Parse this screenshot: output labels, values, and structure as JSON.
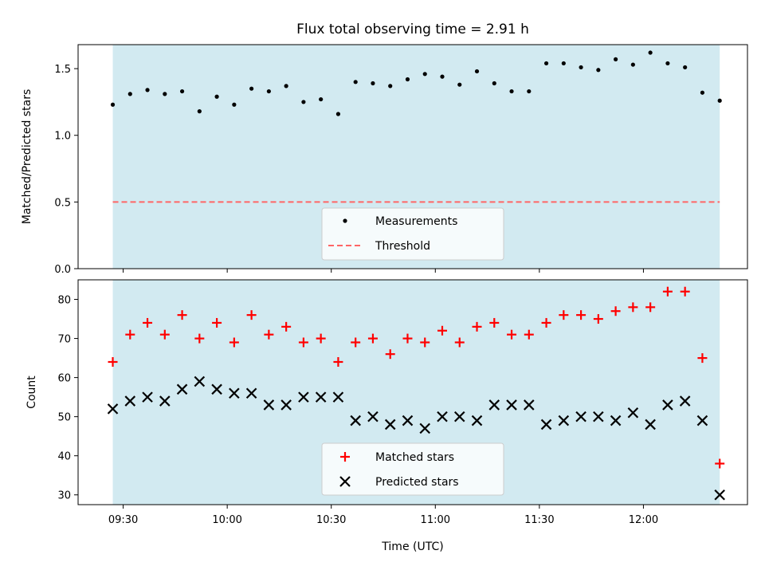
{
  "chart_data": [
    {
      "type": "scatter",
      "title": "Flux total observing time = 2.91 h",
      "ylabel": "Matched/Predicted stars",
      "xlabel": "",
      "ylim": [
        0,
        1.68
      ],
      "yticks": [
        0.0,
        0.5,
        1.0,
        1.5
      ],
      "ytick_labels": [
        "0.0",
        "0.5",
        "1.0",
        "1.5"
      ],
      "shaded_region": {
        "x_start": "09:27",
        "x_end": "12:22",
        "color": "#add8e6"
      },
      "legend": {
        "position": "bottom-center",
        "entries": [
          "Measurements",
          "Threshold"
        ]
      },
      "series": [
        {
          "name": "Measurements",
          "marker": "dot",
          "color": "#000000",
          "x": [
            "09:27",
            "09:32",
            "09:37",
            "09:42",
            "09:47",
            "09:52",
            "09:57",
            "10:02",
            "10:07",
            "10:12",
            "10:17",
            "10:22",
            "10:27",
            "10:32",
            "10:37",
            "10:42",
            "10:47",
            "10:52",
            "10:57",
            "11:02",
            "11:07",
            "11:12",
            "11:17",
            "11:22",
            "11:27",
            "11:32",
            "11:37",
            "11:42",
            "11:47",
            "11:52",
            "11:57",
            "12:02",
            "12:07",
            "12:12",
            "12:17",
            "12:22"
          ],
          "y": [
            1.23,
            1.31,
            1.34,
            1.31,
            1.33,
            1.18,
            1.29,
            1.23,
            1.35,
            1.33,
            1.37,
            1.25,
            1.27,
            1.16,
            1.4,
            1.39,
            1.37,
            1.42,
            1.46,
            1.44,
            1.38,
            1.48,
            1.39,
            1.33,
            1.33,
            1.54,
            1.54,
            1.51,
            1.49,
            1.57,
            1.53,
            1.62,
            1.54,
            1.51,
            1.32,
            1.26
          ]
        },
        {
          "name": "Threshold",
          "line": "dashed",
          "color": "#ff6666",
          "x": [
            "09:27",
            "12:22"
          ],
          "y": [
            0.5,
            0.5
          ]
        }
      ]
    },
    {
      "type": "scatter",
      "title": "",
      "ylabel": "Count",
      "xlabel": "Time (UTC)",
      "ylim": [
        27.5,
        85
      ],
      "yticks": [
        30,
        40,
        50,
        60,
        70,
        80
      ],
      "ytick_labels": [
        "30",
        "40",
        "50",
        "60",
        "70",
        "80"
      ],
      "xticks": [
        "09:30",
        "10:00",
        "10:30",
        "11:00",
        "11:30",
        "12:00"
      ],
      "xlim": [
        "09:17",
        "12:30"
      ],
      "shaded_region": {
        "x_start": "09:27",
        "x_end": "12:22",
        "color": "#add8e6"
      },
      "legend": {
        "position": "bottom-center",
        "entries": [
          "Matched stars",
          "Predicted stars"
        ]
      },
      "series": [
        {
          "name": "Matched stars",
          "marker": "plus",
          "color": "#ff0000",
          "x": [
            "09:27",
            "09:32",
            "09:37",
            "09:42",
            "09:47",
            "09:52",
            "09:57",
            "10:02",
            "10:07",
            "10:12",
            "10:17",
            "10:22",
            "10:27",
            "10:32",
            "10:37",
            "10:42",
            "10:47",
            "10:52",
            "10:57",
            "11:02",
            "11:07",
            "11:12",
            "11:17",
            "11:22",
            "11:27",
            "11:32",
            "11:37",
            "11:42",
            "11:47",
            "11:52",
            "11:57",
            "12:02",
            "12:07",
            "12:12",
            "12:17",
            "12:22"
          ],
          "y": [
            64,
            71,
            74,
            71,
            76,
            70,
            74,
            69,
            76,
            71,
            73,
            69,
            70,
            64,
            69,
            70,
            66,
            70,
            69,
            72,
            69,
            73,
            74,
            71,
            71,
            74,
            76,
            76,
            75,
            77,
            78,
            78,
            82,
            82,
            65,
            38
          ]
        },
        {
          "name": "Predicted stars",
          "marker": "x",
          "color": "#000000",
          "x": [
            "09:27",
            "09:32",
            "09:37",
            "09:42",
            "09:47",
            "09:52",
            "09:57",
            "10:02",
            "10:07",
            "10:12",
            "10:17",
            "10:22",
            "10:27",
            "10:32",
            "10:37",
            "10:42",
            "10:47",
            "10:52",
            "10:57",
            "11:02",
            "11:07",
            "11:12",
            "11:17",
            "11:22",
            "11:27",
            "11:32",
            "11:37",
            "11:42",
            "11:47",
            "11:52",
            "11:57",
            "12:02",
            "12:07",
            "12:12",
            "12:17",
            "12:22"
          ],
          "y": [
            52,
            54,
            55,
            54,
            57,
            59,
            57,
            56,
            56,
            53,
            53,
            55,
            55,
            55,
            49,
            50,
            48,
            49,
            47,
            50,
            50,
            49,
            53,
            53,
            53,
            48,
            49,
            50,
            50,
            49,
            51,
            48,
            53,
            54,
            49,
            30
          ]
        }
      ]
    }
  ]
}
